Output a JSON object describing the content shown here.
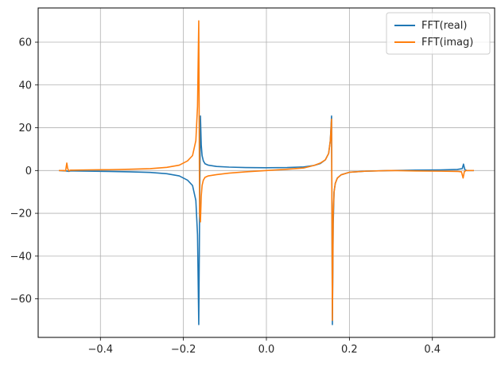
{
  "chart_data": {
    "type": "line",
    "title": "",
    "xlabel": "",
    "ylabel": "",
    "xlim": [
      -0.55,
      0.55
    ],
    "ylim": [
      -78,
      76
    ],
    "xticks": [
      -0.4,
      -0.2,
      0.0,
      0.2,
      0.4
    ],
    "xtick_labels": [
      "−0.4",
      "−0.2",
      "0.0",
      "0.2",
      "0.4"
    ],
    "yticks": [
      -60,
      -40,
      -20,
      0,
      20,
      40,
      60
    ],
    "ytick_labels": [
      "−60",
      "−40",
      "−20",
      "0",
      "20",
      "40",
      "60"
    ],
    "grid": true,
    "legend_position": "top-right",
    "series": [
      {
        "name": "FFT(real)",
        "color": "#1f77b4",
        "x": [
          -0.5,
          -0.484,
          -0.479,
          -0.476,
          -0.473,
          -0.465,
          -0.43,
          -0.38,
          -0.33,
          -0.28,
          -0.24,
          -0.21,
          -0.19,
          -0.178,
          -0.17,
          -0.166,
          -0.163,
          -0.161,
          -0.159,
          -0.157,
          -0.155,
          -0.152,
          -0.148,
          -0.14,
          -0.12,
          -0.09,
          -0.05,
          0.0,
          0.05,
          0.09,
          0.115,
          0.13,
          0.142,
          0.15,
          0.154,
          0.157,
          0.159,
          0.161,
          0.163,
          0.166,
          0.171,
          0.18,
          0.2,
          0.24,
          0.3,
          0.36,
          0.42,
          0.46,
          0.472,
          0.475,
          0.478,
          0.483,
          0.5
        ],
        "y": [
          0,
          -0.2,
          -0.3,
          -0.4,
          -0.2,
          -0.2,
          -0.3,
          -0.4,
          -0.6,
          -0.9,
          -1.5,
          -2.5,
          -4.5,
          -7,
          -14,
          -30,
          -72,
          -20,
          25.5,
          12,
          7,
          4.5,
          3.2,
          2.5,
          1.9,
          1.6,
          1.4,
          1.3,
          1.4,
          1.7,
          2.4,
          3.3,
          5,
          8,
          14,
          25.5,
          -72,
          -25,
          -10,
          -6,
          -3.5,
          -2,
          -0.8,
          -0.3,
          0,
          0.2,
          0.3,
          0.5,
          0.9,
          3,
          0.5,
          0,
          0
        ]
      },
      {
        "name": "FFT(imag)",
        "color": "#ff7f0e",
        "x": [
          -0.5,
          -0.488,
          -0.484,
          -0.481,
          -0.479,
          -0.476,
          -0.472,
          -0.465,
          -0.43,
          -0.38,
          -0.33,
          -0.28,
          -0.24,
          -0.21,
          -0.19,
          -0.178,
          -0.17,
          -0.166,
          -0.163,
          -0.161,
          -0.159,
          -0.157,
          -0.155,
          -0.152,
          -0.148,
          -0.14,
          -0.12,
          -0.09,
          -0.05,
          0.0,
          0.05,
          0.09,
          0.115,
          0.13,
          0.142,
          0.15,
          0.154,
          0.157,
          0.159,
          0.161,
          0.163,
          0.166,
          0.171,
          0.18,
          0.2,
          0.24,
          0.3,
          0.36,
          0.42,
          0.46,
          0.47,
          0.474,
          0.477,
          0.481,
          0.485,
          0.5
        ],
        "y": [
          0,
          0,
          -0.2,
          3.5,
          1,
          -0.2,
          0.2,
          0.2,
          0.3,
          0.4,
          0.6,
          0.9,
          1.5,
          2.5,
          4.5,
          7,
          14,
          30,
          70,
          -20,
          -24,
          -12,
          -7,
          -4.5,
          -3.2,
          -2.5,
          -1.9,
          -1.2,
          -0.6,
          0,
          0.6,
          1.2,
          2.4,
          3.5,
          5,
          8,
          14,
          24,
          -70,
          -20,
          -10,
          -6,
          -3.5,
          -2,
          -0.8,
          -0.3,
          0,
          -0.2,
          -0.3,
          -0.4,
          -0.6,
          -3.5,
          -0.5,
          0,
          0,
          0
        ]
      }
    ]
  }
}
